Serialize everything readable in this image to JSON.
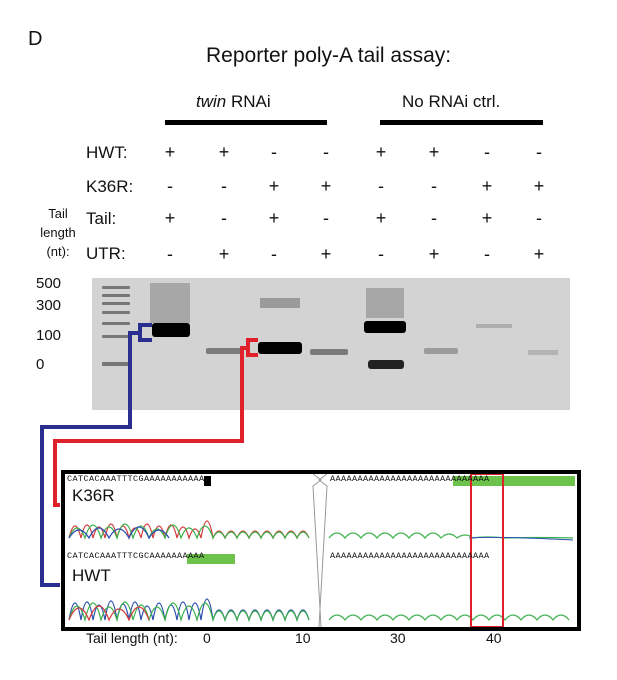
{
  "panel_label": "D",
  "title": "Reporter poly-A tail assay:",
  "groups": [
    {
      "italic": "twin",
      "rest": " RNAi"
    },
    {
      "italic": "",
      "rest": "No RNAi ctrl."
    }
  ],
  "rows": [
    {
      "label": "HWT:",
      "values": [
        "+",
        "+",
        "-",
        "-",
        "+",
        "+",
        "-",
        "-"
      ]
    },
    {
      "label": "K36R:",
      "values": [
        "-",
        "-",
        "+",
        "+",
        "-",
        "-",
        "+",
        "+"
      ]
    },
    {
      "label": "Tail:",
      "values": [
        "+",
        "-",
        "+",
        "-",
        "+",
        "-",
        "+",
        "-"
      ]
    },
    {
      "label": "UTR:",
      "values": [
        "-",
        "+",
        "-",
        "+",
        "-",
        "+",
        "-",
        "+"
      ]
    }
  ],
  "tail_length_label": [
    "Tail",
    "length",
    "(nt):"
  ],
  "ladder_labels": [
    "500",
    "300",
    "100",
    "0"
  ],
  "tracks": [
    {
      "name": "K36R",
      "seq_left": "CATCACAAATTTCGAAAAAAAAAAA",
      "seq_right": "AAAAAAAAAAAAAAAAAAAAAAAAAAAAA"
    },
    {
      "name": "HWT",
      "seq_left": "CATCACAAATTTCGCAAAAAAAAAA",
      "seq_right": "AAAAAAAAAAAAAAAAAAAAAAAAAAAAA"
    }
  ],
  "axis_title": "Tail length (nt):",
  "axis_ticks": [
    "0",
    "10",
    "30",
    "40"
  ],
  "colors": {
    "blue_bracket": "#2a2f8f",
    "red_bracket": "#e0202a",
    "highlight": "#6cc24a",
    "gel_bg": "#d3d3d3"
  }
}
